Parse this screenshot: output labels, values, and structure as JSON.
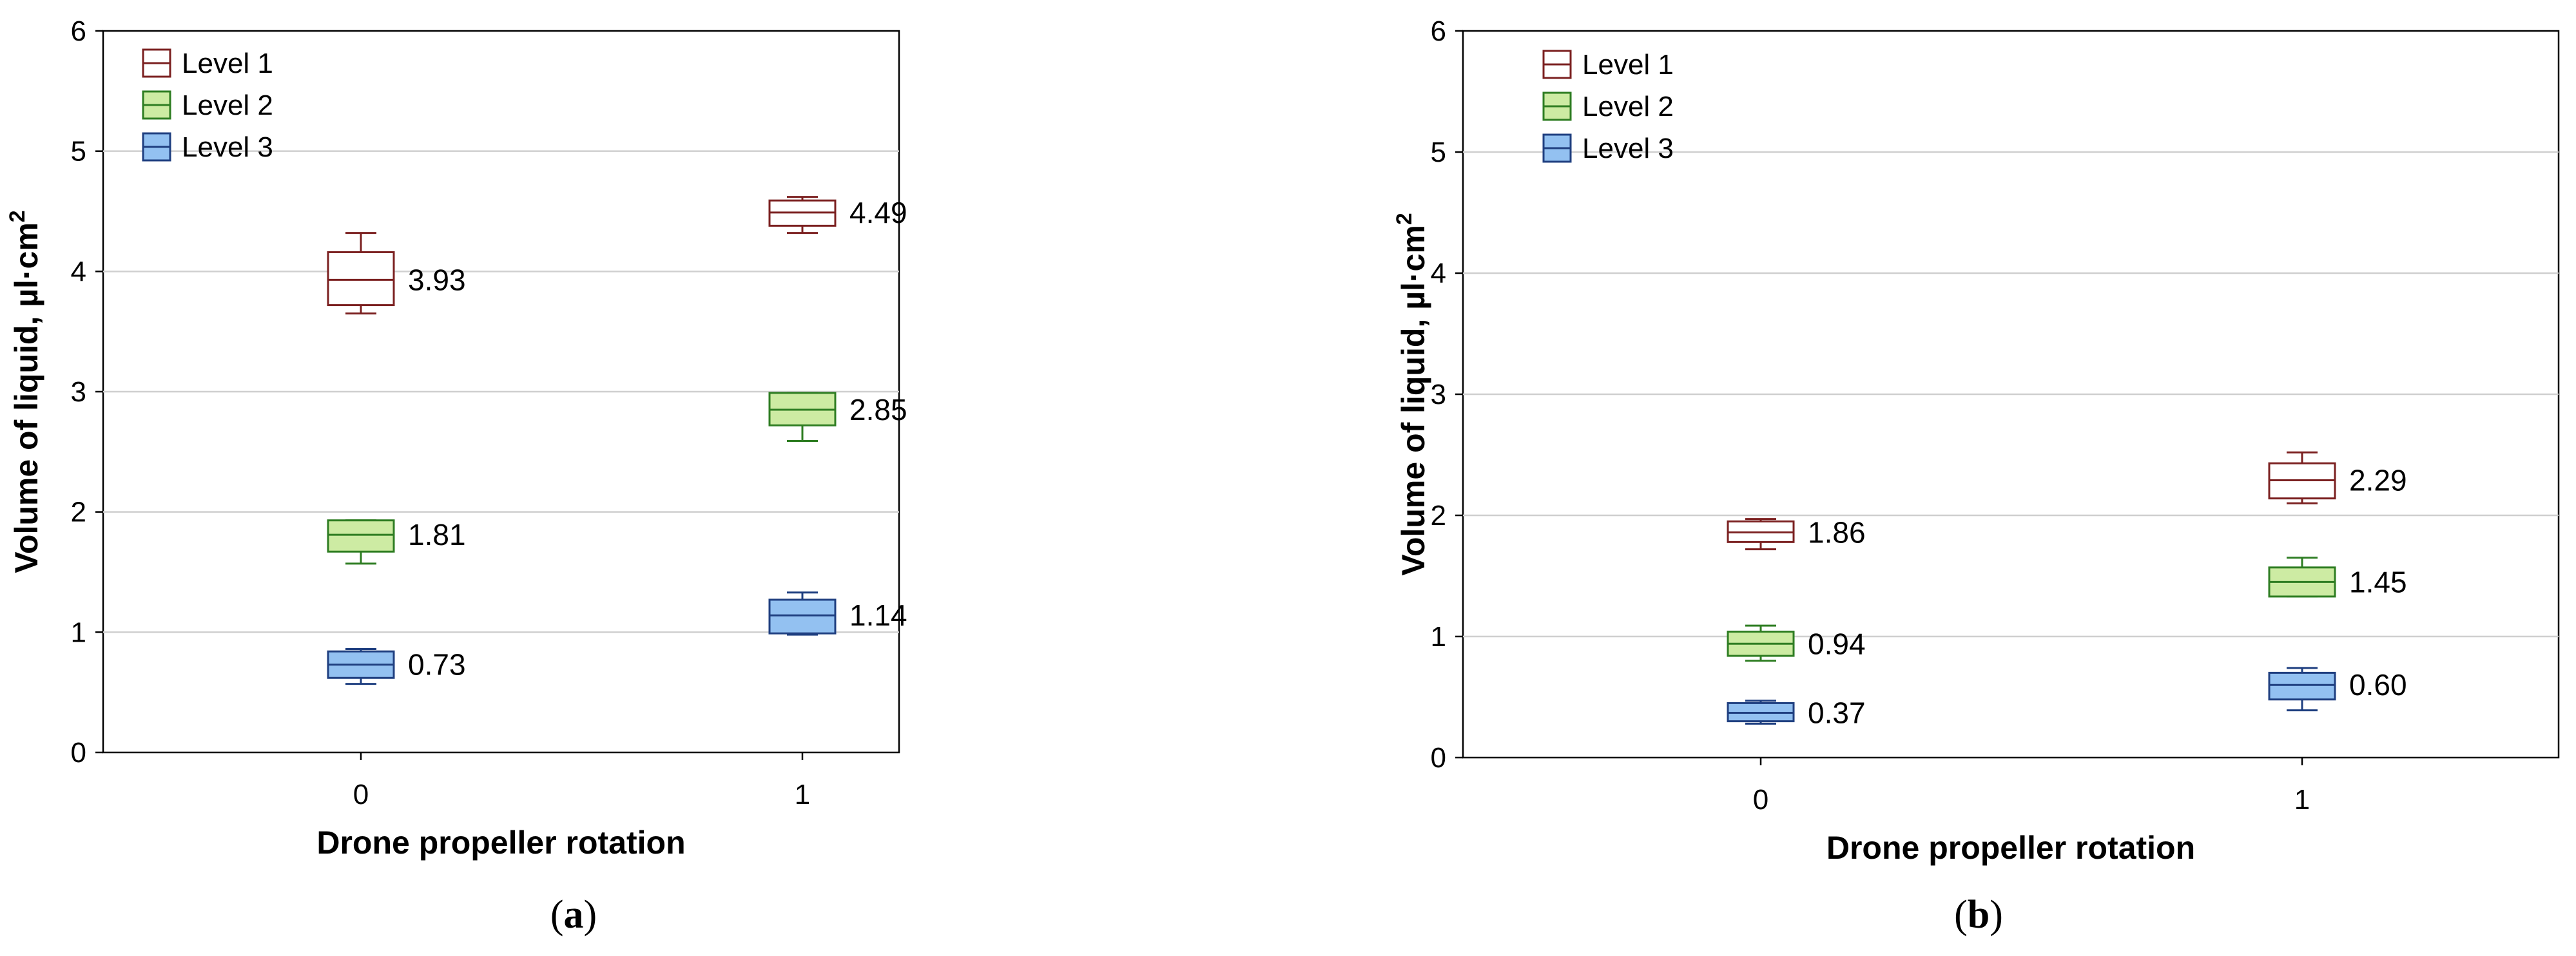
{
  "chart_data": [
    {
      "type": "box",
      "panel": "a",
      "panel_label_open": "(",
      "panel_label_letter": "a",
      "panel_label_close": ")",
      "xlabel": "Drone propeller rotation",
      "ylabel": "Volume of liquid, µl·cm",
      "ylabel_superscript": "2",
      "categories": [
        "0",
        "1"
      ],
      "ylim": [
        0,
        6
      ],
      "yticks": [
        0,
        1,
        2,
        3,
        4,
        5,
        6
      ],
      "ytick_labels": [
        "0",
        "1",
        "2",
        "3",
        "4",
        "5",
        "6"
      ],
      "grid": true,
      "legend_position": "top-left",
      "series": [
        {
          "name": "Level 1",
          "color": "#7B2020",
          "fill": "#ffffff",
          "boxes": [
            {
              "category": "0",
              "median": 3.93,
              "q1": 3.72,
              "q3": 4.16,
              "min": 3.65,
              "max": 4.32,
              "label": "3.93"
            },
            {
              "category": "1",
              "median": 4.49,
              "q1": 4.38,
              "q3": 4.59,
              "min": 4.32,
              "max": 4.62,
              "label": "4.49"
            }
          ]
        },
        {
          "name": "Level 2",
          "color": "#2E7D22",
          "fill": "#CDEBA3",
          "boxes": [
            {
              "category": "0",
              "median": 1.81,
              "q1": 1.67,
              "q3": 1.93,
              "min": 1.57,
              "max": 1.93,
              "label": "1.81"
            },
            {
              "category": "1",
              "median": 2.85,
              "q1": 2.72,
              "q3": 2.99,
              "min": 2.59,
              "max": 2.99,
              "label": "2.85"
            }
          ]
        },
        {
          "name": "Level 3",
          "color": "#1F3F80",
          "fill": "#93C1F1",
          "boxes": [
            {
              "category": "0",
              "median": 0.73,
              "q1": 0.62,
              "q3": 0.84,
              "min": 0.57,
              "max": 0.86,
              "label": "0.73"
            },
            {
              "category": "1",
              "median": 1.14,
              "q1": 0.99,
              "q3": 1.27,
              "min": 0.98,
              "max": 1.33,
              "label": "1.14"
            }
          ]
        }
      ]
    },
    {
      "type": "box",
      "panel": "b",
      "panel_label_open": "(",
      "panel_label_letter": "b",
      "panel_label_close": ")",
      "xlabel": "Drone propeller rotation",
      "ylabel": "Volume of liquid, µl·cm",
      "ylabel_superscript": "2",
      "categories": [
        "0",
        "1"
      ],
      "ylim": [
        0,
        6
      ],
      "yticks": [
        0,
        1,
        2,
        3,
        4,
        5,
        6
      ],
      "ytick_labels": [
        "0",
        "1",
        "2",
        "3",
        "4",
        "5",
        "6"
      ],
      "grid": true,
      "legend_position": "top-left",
      "series": [
        {
          "name": "Level 1",
          "color": "#7B2020",
          "fill": "#ffffff",
          "boxes": [
            {
              "category": "0",
              "median": 1.86,
              "q1": 1.78,
              "q3": 1.95,
              "min": 1.72,
              "max": 1.97,
              "label": "1.86"
            },
            {
              "category": "1",
              "median": 2.29,
              "q1": 2.14,
              "q3": 2.43,
              "min": 2.1,
              "max": 2.52,
              "label": "2.29"
            }
          ]
        },
        {
          "name": "Level 2",
          "color": "#2E7D22",
          "fill": "#CDEBA3",
          "boxes": [
            {
              "category": "0",
              "median": 0.94,
              "q1": 0.84,
              "q3": 1.04,
              "min": 0.8,
              "max": 1.09,
              "label": "0.94"
            },
            {
              "category": "1",
              "median": 1.45,
              "q1": 1.33,
              "q3": 1.57,
              "min": 1.33,
              "max": 1.65,
              "label": "1.45"
            }
          ]
        },
        {
          "name": "Level 3",
          "color": "#1F3F80",
          "fill": "#93C1F1",
          "boxes": [
            {
              "category": "0",
              "median": 0.37,
              "q1": 0.3,
              "q3": 0.45,
              "min": 0.28,
              "max": 0.47,
              "label": "0.37"
            },
            {
              "category": "1",
              "median": 0.6,
              "q1": 0.48,
              "q3": 0.7,
              "min": 0.39,
              "max": 0.74,
              "label": "0.60"
            }
          ]
        }
      ]
    }
  ]
}
